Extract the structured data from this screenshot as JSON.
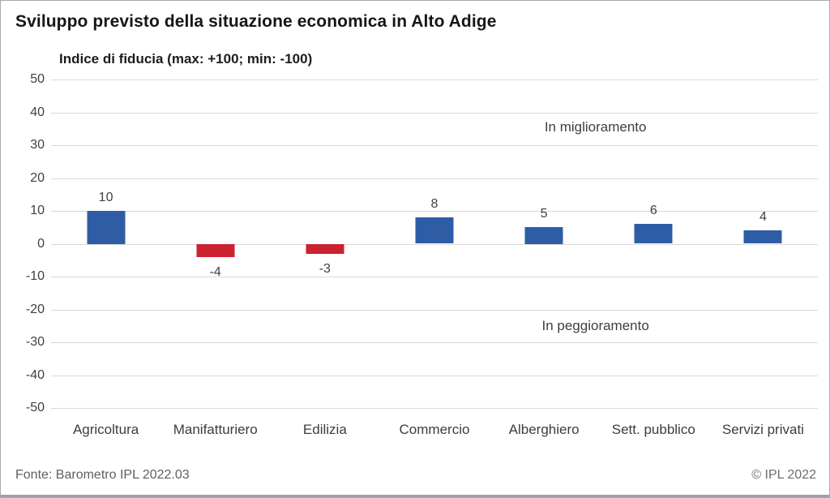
{
  "chart_data": {
    "type": "bar",
    "title": "Sviluppo previsto della situazione economica in Alto Adige",
    "subtitle": "Indice di fiducia (max: +100; min: -100)",
    "categories": [
      "Agricoltura",
      "Manifatturiero",
      "Edilizia",
      "Commercio",
      "Alberghiero",
      "Sett. pubblico",
      "Servizi privati"
    ],
    "values": [
      10,
      -4,
      -3,
      8,
      5,
      6,
      4
    ],
    "xlabel": "",
    "ylabel": "",
    "ylim": [
      -50,
      50
    ],
    "ytick_step": 10,
    "grid": true,
    "legend_position": "none",
    "annotations": [
      {
        "text": "In miglioramento",
        "x_percent": 71,
        "y_value": 35.5
      },
      {
        "text": "In peggioramento",
        "x_percent": 71,
        "y_value": -25
      }
    ],
    "colors": {
      "positive_bar": "#2e5da6",
      "negative_bar": "#cc2130",
      "gridline": "#d9d9d9",
      "axis_text": "#404040"
    }
  },
  "footer": {
    "source": "Fonte: Barometro IPL 2022.03",
    "copyright": "© IPL 2022"
  },
  "frame": {
    "bottom_bar_color": "#9aa0ae",
    "border_color": "#ababab"
  }
}
